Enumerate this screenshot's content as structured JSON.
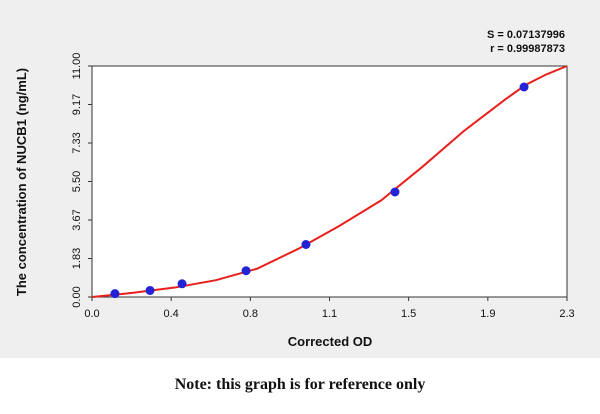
{
  "chart_data": {
    "type": "scatter",
    "xlabel": "Corrected OD",
    "ylabel": "The concentration of NUCB1 (ng/mL)",
    "annotations": [
      "S = 0.07137996",
      "r = 0.99987873"
    ],
    "xlim": [
      0,
      2.3
    ],
    "ylim": [
      0,
      11
    ],
    "xticks": [
      {
        "value": 0,
        "label": "0.0"
      },
      {
        "value": 0.3833,
        "label": "0.4"
      },
      {
        "value": 0.7667,
        "label": "0.8"
      },
      {
        "value": 1.15,
        "label": "1.1"
      },
      {
        "value": 1.5333,
        "label": "1.5"
      },
      {
        "value": 1.9167,
        "label": "1.9"
      },
      {
        "value": 2.3,
        "label": "2.3"
      }
    ],
    "yticks": [
      {
        "value": 0,
        "label": "0.00"
      },
      {
        "value": 1.8333,
        "label": "1.83"
      },
      {
        "value": 3.6667,
        "label": "3.67"
      },
      {
        "value": 5.5,
        "label": "5.50"
      },
      {
        "value": 7.3333,
        "label": "7.33"
      },
      {
        "value": 9.1667,
        "label": "9.17"
      },
      {
        "value": 11,
        "label": "11.00"
      }
    ],
    "points": {
      "color": "#2323d6",
      "x": [
        0.111,
        0.281,
        0.436,
        0.746,
        1.036,
        1.467,
        2.092
      ],
      "values": [
        0.16,
        0.31,
        0.63,
        1.25,
        2.5,
        5,
        10
      ]
    },
    "fit": {
      "color": "#e8201c",
      "x": [
        0,
        0.2,
        0.4,
        0.6,
        0.8,
        1.0,
        1.2,
        1.4,
        1.6,
        1.8,
        2.0,
        2.1,
        2.2,
        2.3
      ],
      "values": [
        0,
        0.2,
        0.45,
        0.8,
        1.35,
        2.3,
        3.4,
        4.6,
        6.2,
        7.9,
        9.4,
        10.1,
        10.6,
        11.0
      ]
    }
  },
  "note": "Note: this graph is for reference only"
}
